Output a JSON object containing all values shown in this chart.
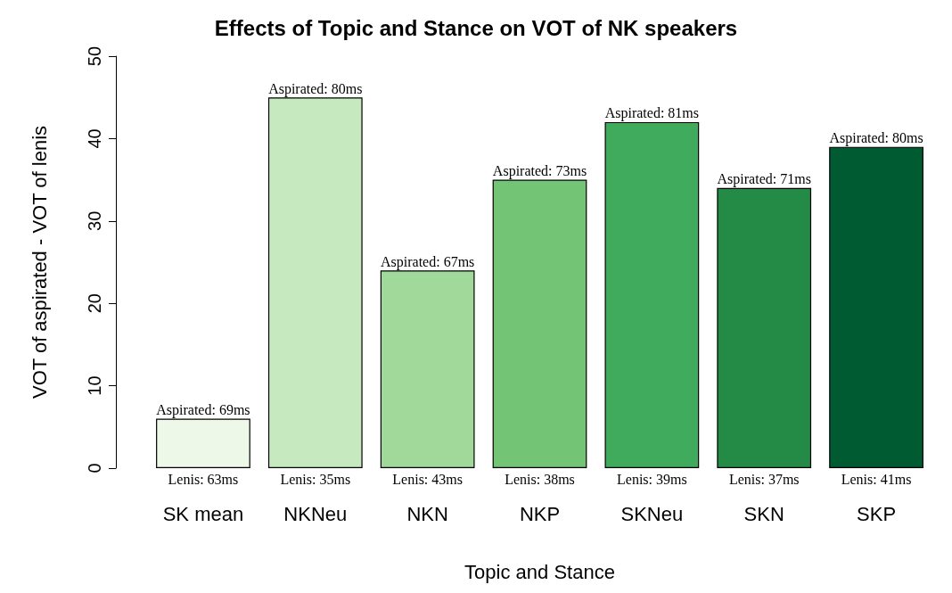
{
  "chart_data": {
    "type": "bar",
    "title": "Effects of Topic and Stance on VOT of NK speakers",
    "xlabel": "Topic and Stance",
    "ylabel": "VOT of aspirated - VOT of lenis",
    "categories": [
      "SK mean",
      "NKNeu",
      "NKN",
      "NKP",
      "SKNeu",
      "SKN",
      "SKP"
    ],
    "values": [
      6,
      45,
      24,
      35,
      42,
      34,
      39
    ],
    "colors": [
      "#edf8e9",
      "#c7e9c0",
      "#a1d99b",
      "#74c476",
      "#41ab5d",
      "#238b45",
      "#005a32"
    ],
    "annotations": [
      {
        "text": "Aspirated: 69ms",
        "x": "SK mean",
        "y": 6
      },
      {
        "text": "Aspirated: 80ms",
        "x": "NKNeu",
        "y": 45
      },
      {
        "text": "Aspirated: 67ms",
        "x": "NKN",
        "y": 24
      },
      {
        "text": "Aspirated: 73ms",
        "x": "NKP",
        "y": 35
      },
      {
        "text": "Aspirated: 81ms",
        "x": "SKNeu",
        "y": 42
      },
      {
        "text": "Aspirated: 71ms",
        "x": "SKN",
        "y": 34
      },
      {
        "text": "Aspirated: 80ms",
        "x": "SKP",
        "y": 39
      },
      {
        "text": "Lenis: 63ms",
        "x": "SK mean",
        "y": 0
      },
      {
        "text": "Lenis: 35ms",
        "x": "NKNeu",
        "y": 0
      },
      {
        "text": "Lenis: 43ms",
        "x": "NKN",
        "y": 0
      },
      {
        "text": "Lenis: 38ms",
        "x": "NKP",
        "y": 0
      },
      {
        "text": "Lenis: 39ms",
        "x": "SKNeu",
        "y": 0
      },
      {
        "text": "Lenis: 37ms",
        "x": "SKN",
        "y": 0
      },
      {
        "text": "Lenis: 41ms",
        "x": "SKP",
        "y": 0
      }
    ],
    "ylim": [
      0,
      50
    ],
    "yticks": [
      0,
      10,
      20,
      30,
      40,
      50
    ],
    "grid": false
  }
}
